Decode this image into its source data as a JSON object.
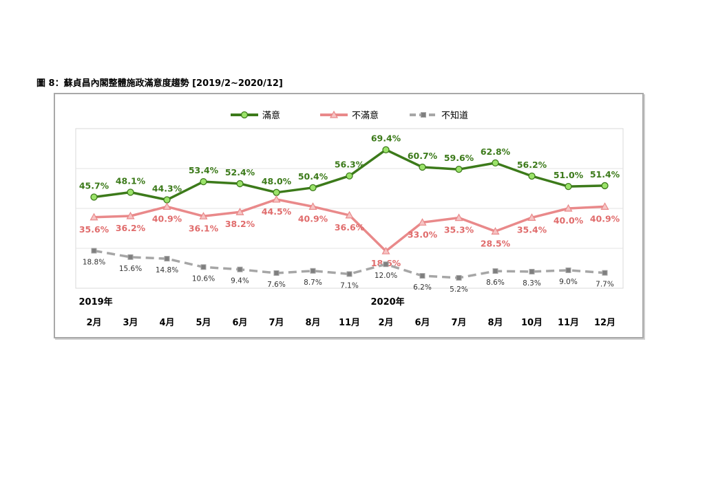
{
  "figure_title": "圖 8：蘇貞昌內閣整體施政滿意度趨勢 [2019/2~2020/12]",
  "chart_data": {
    "type": "line",
    "categories": [
      "2月",
      "3月",
      "4月",
      "5月",
      "6月",
      "7月",
      "8月",
      "11月",
      "2月",
      "6月",
      "7月",
      "8月",
      "10月",
      "11月",
      "12月"
    ],
    "year_labels": [
      {
        "text": "2019年",
        "at_index": 0
      },
      {
        "text": "2020年",
        "at_index": 8
      }
    ],
    "series": [
      {
        "name": "滿意",
        "color": "#3c7a1a",
        "marker": "circle",
        "marker_fill": "#9be36a",
        "line_style": "solid",
        "values": [
          45.7,
          48.1,
          44.3,
          53.4,
          52.4,
          48.0,
          50.4,
          56.3,
          69.4,
          60.7,
          59.6,
          62.8,
          56.2,
          51.0,
          51.4
        ],
        "labels": [
          "45.7%",
          "48.1%",
          "44.3%",
          "53.4%",
          "52.4%",
          "48.0%",
          "50.4%",
          "56.3%",
          "69.4%",
          "60.7%",
          "59.6%",
          "62.8%",
          "56.2%",
          "51.0%",
          "51.4%"
        ]
      },
      {
        "name": "不滿意",
        "color": "#e9898a",
        "marker": "triangle",
        "marker_fill": "#f6c4c4",
        "line_style": "solid",
        "values": [
          35.6,
          36.2,
          40.9,
          36.1,
          38.2,
          44.5,
          40.9,
          36.6,
          18.6,
          33.0,
          35.3,
          28.5,
          35.4,
          40.0,
          40.9
        ],
        "labels": [
          "35.6%",
          "36.2%",
          "40.9%",
          "36.1%",
          "38.2%",
          "44.5%",
          "40.9%",
          "36.6%",
          "18.6%",
          "33.0%",
          "35.3%",
          "28.5%",
          "35.4%",
          "40.0%",
          "40.9%"
        ]
      },
      {
        "name": "不知道",
        "color": "#a6a6a6",
        "marker": "square",
        "marker_fill": "#7f7f7f",
        "line_style": "dashed",
        "values": [
          18.8,
          15.6,
          14.8,
          10.6,
          9.4,
          7.6,
          8.7,
          7.1,
          12.0,
          6.2,
          5.2,
          8.6,
          8.3,
          9.0,
          7.7
        ],
        "labels": [
          "18.8%",
          "15.6%",
          "14.8%",
          "10.6%",
          "9.4%",
          "7.6%",
          "8.7%",
          "7.1%",
          "12.0%",
          "6.2%",
          "5.2%",
          "8.6%",
          "8.3%",
          "9.0%",
          "7.7%"
        ]
      }
    ],
    "ylim": [
      0,
      80
    ],
    "grid": "horizontal",
    "legend_position": "top-center",
    "title": "",
    "xlabel": "",
    "ylabel": ""
  }
}
